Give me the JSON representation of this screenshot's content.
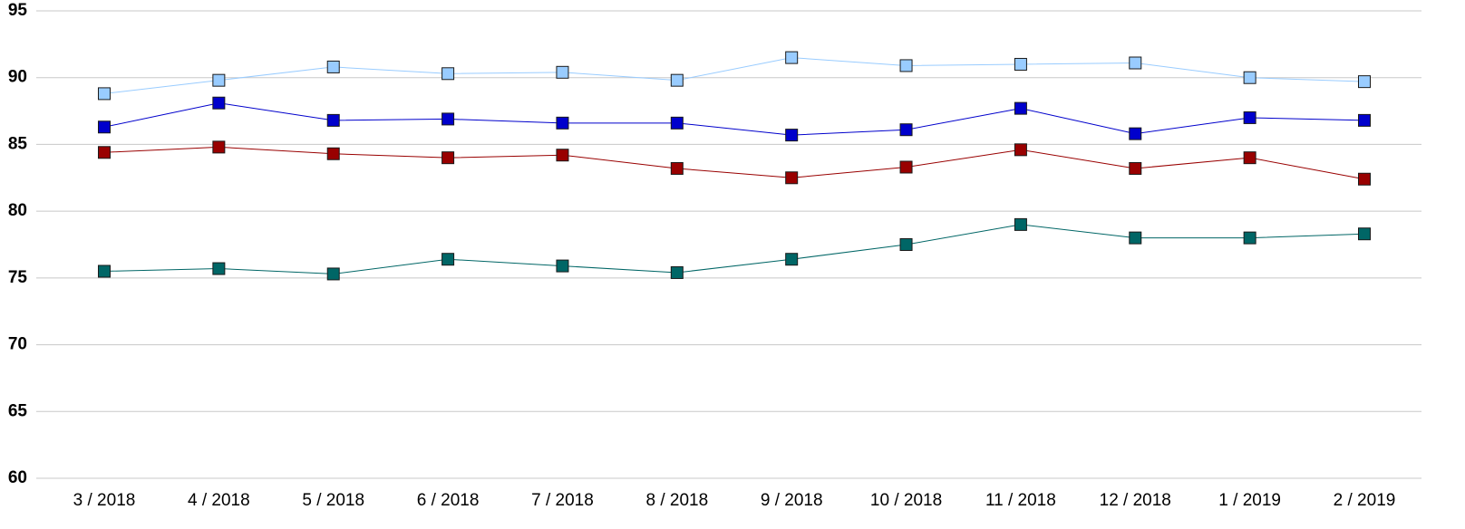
{
  "chart_data": {
    "type": "line",
    "categories": [
      "3 / 2018",
      "4 / 2018",
      "5 / 2018",
      "6 / 2018",
      "7 / 2018",
      "8 / 2018",
      "9 / 2018",
      "10 / 2018",
      "11 / 2018",
      "12 / 2018",
      "1 / 2019",
      "2 / 2019"
    ],
    "series": [
      {
        "color": "#99ccff",
        "values": [
          88.8,
          89.8,
          90.8,
          90.3,
          90.4,
          89.8,
          91.5,
          90.9,
          91.0,
          91.1,
          90.0,
          89.7
        ]
      },
      {
        "color": "#0000cc",
        "values": [
          86.3,
          88.1,
          86.8,
          86.9,
          86.6,
          86.6,
          85.7,
          86.1,
          87.7,
          85.8,
          87.0,
          86.8
        ]
      },
      {
        "color": "#990000",
        "values": [
          84.4,
          84.8,
          84.3,
          84.0,
          84.2,
          83.2,
          82.5,
          83.3,
          84.6,
          83.2,
          84.0,
          82.4
        ]
      },
      {
        "color": "#006666",
        "values": [
          75.5,
          75.7,
          75.3,
          76.4,
          75.9,
          75.4,
          76.4,
          77.5,
          79.0,
          78.0,
          78.0,
          78.3
        ]
      }
    ],
    "ylim": [
      60,
      95
    ],
    "yticks": [
      60,
      65,
      70,
      75,
      80,
      85,
      90,
      95
    ],
    "grid": true
  }
}
